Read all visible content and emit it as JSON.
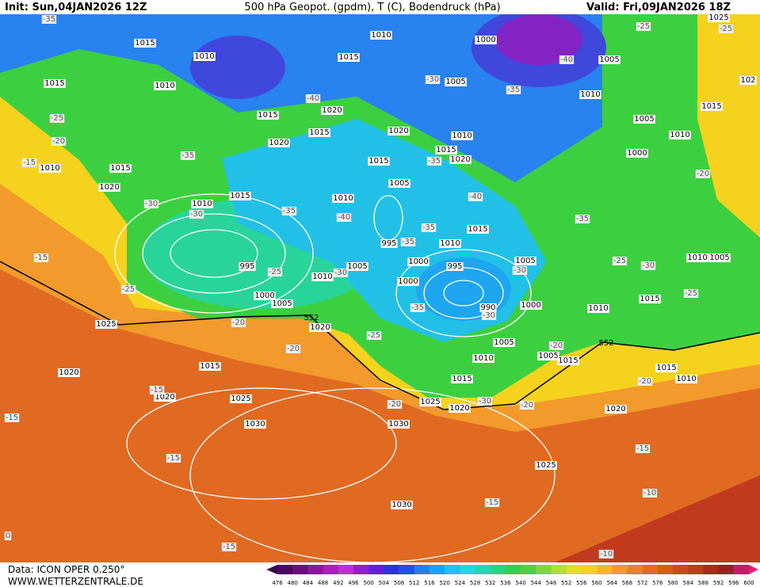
{
  "header": {
    "init": "Init: Sun,04JAN2026 12Z",
    "title": "500 hPa Geopot. (gpdm), T (C), Bodendruck (hPa)",
    "valid": "Valid: Fri,09JAN2026 18Z"
  },
  "footer": {
    "data": "Data: ICON OPER 0.250°",
    "site": "WWW.WETTERZENTRALE.DE"
  },
  "colorbar": {
    "labels": [
      476,
      480,
      484,
      488,
      492,
      496,
      500,
      504,
      508,
      512,
      516,
      520,
      524,
      528,
      532,
      536,
      540,
      544,
      548,
      552,
      556,
      560,
      564,
      568,
      572,
      576,
      580,
      584,
      588,
      592,
      596,
      600
    ]
  },
  "map": {
    "pressure_labels": [
      1010,
      1015,
      1010,
      1015,
      1000,
      1005,
      1015,
      1010,
      1005,
      1010,
      1020,
      1015,
      1015,
      1005,
      1020,
      1015,
      1020,
      1010,
      1010,
      1015,
      1020,
      1015,
      1000,
      1010,
      1015,
      1020,
      1005,
      1015,
      1010,
      1010,
      995,
      1010,
      1015,
      995,
      1005,
      1000,
      995,
      1005,
      1010,
      1005,
      1010,
      1000,
      1000,
      1005,
      990,
      1000,
      1010,
      1015,
      1025,
      1020,
      1005,
      1010,
      1005,
      1015,
      1015,
      1015,
      1010,
      1020,
      1020,
      1025,
      1015,
      1025,
      1020,
      1020,
      1030,
      1030,
      1025,
      1030,
      1025,
      102
    ],
    "temperature_labels": [
      -35,
      -25,
      -25,
      -40,
      -30,
      -35,
      -40,
      -25,
      -20,
      -35,
      -15,
      -35,
      -20,
      -30,
      -30,
      -35,
      -40,
      -40,
      -35,
      -35,
      -35,
      -15,
      -25,
      -30,
      -30,
      -25,
      -30,
      -25,
      -35,
      -30,
      -25,
      -20,
      -25,
      -20,
      -20,
      -15,
      -20,
      -20,
      -30,
      -20,
      -15,
      -15,
      -15,
      -15,
      -10,
      -15,
      -10,
      0
    ],
    "geopotential_labels": [
      552,
      552
    ]
  }
}
